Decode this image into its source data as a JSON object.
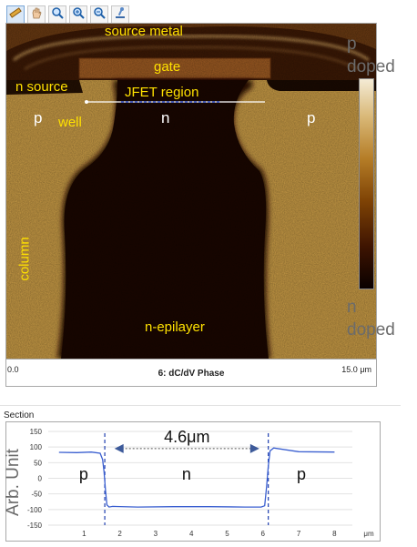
{
  "toolbar": {
    "buttons": [
      {
        "icon": "ruler-icon",
        "active": true
      },
      {
        "icon": "hand-pan-icon",
        "active": false
      },
      {
        "icon": "zoom-icon",
        "active": false
      },
      {
        "icon": "zoom-in-icon",
        "active": false
      },
      {
        "icon": "zoom-out-icon",
        "active": false
      },
      {
        "icon": "microscope-icon",
        "active": false
      }
    ]
  },
  "image": {
    "labels": {
      "source_metal": "source metal",
      "gate": "gate",
      "n_source": "n source",
      "jfet_region": "JFET region",
      "p_left": "p",
      "well": "well",
      "n_center": "n",
      "p_right": "p",
      "column": "column",
      "n_epilayer": "n-epilayer"
    },
    "scale_start": "0.0",
    "channel_title": "6: dC/dV Phase",
    "scale_end": "15.0 μm"
  },
  "colorbar": {
    "top_label_1": "p",
    "top_label_2": "doped",
    "bottom_label_1": "n",
    "bottom_label_2": "doped"
  },
  "section": {
    "title": "Section",
    "ylabel": "Arb. Unit",
    "distance_label": "4.6μm",
    "region_labels": [
      "p",
      "n",
      "p"
    ]
  },
  "chart_data": {
    "type": "line",
    "title": "",
    "xlabel": "μm",
    "ylabel": "Arb. Unit",
    "xlim": [
      0,
      8.5
    ],
    "ylim": [
      -150,
      150
    ],
    "x_ticks": [
      1,
      2,
      3,
      4,
      5,
      6,
      7,
      8
    ],
    "y_ticks": [
      150,
      100,
      50,
      0,
      -50,
      -100,
      -150
    ],
    "series": [
      {
        "x": [
          0.3,
          0.8,
          1.2,
          1.45,
          1.52,
          1.56,
          1.6,
          1.64,
          1.7,
          1.8,
          2.5,
          3.5,
          4.5,
          5.5,
          5.95,
          6.05,
          6.1,
          6.15,
          6.2,
          6.3,
          7.0,
          8.0
        ],
        "y": [
          83,
          82,
          84,
          80,
          60,
          20,
          -40,
          -85,
          -92,
          -90,
          -92,
          -91,
          -91,
          -92,
          -92,
          -88,
          -30,
          40,
          88,
          97,
          85,
          84
        ]
      }
    ],
    "markers": {
      "lines_x": [
        1.58,
        6.15
      ],
      "arrow_from": 1.85,
      "arrow_to": 5.9,
      "arrow_y": 95
    },
    "annotations": [
      "4.6μm",
      "p",
      "n",
      "p"
    ]
  }
}
